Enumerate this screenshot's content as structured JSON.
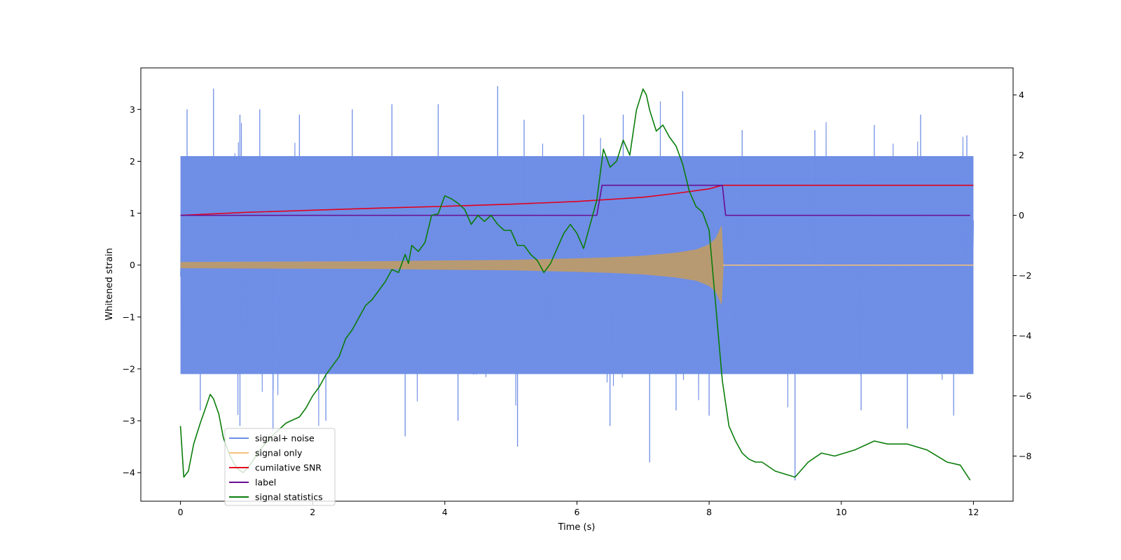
{
  "chart_data": {
    "type": "line",
    "title": "",
    "xlabel": "Time (s)",
    "ylabel": "Whitened strain",
    "xlim": [
      -0.6,
      12.6
    ],
    "ylim": [
      -4.55,
      3.8
    ],
    "y2lim": [
      -9.5,
      4.9
    ],
    "xticks": [
      0,
      2,
      4,
      6,
      8,
      10,
      12
    ],
    "yticks": [
      3,
      2,
      1,
      0,
      -1,
      -2,
      -3,
      -4
    ],
    "y2ticks": [
      4,
      2,
      0,
      -2,
      -4,
      -6,
      -8
    ],
    "legend_position": "lower-left",
    "colors": {
      "signal_noise": "#6f8ee6",
      "signal_only": "#f7c07a",
      "signal_only_fill": "#b89a72",
      "cumulative_snr": "#e3001b",
      "label": "#6a0d91",
      "signal_statistics": "#0a7d0a"
    },
    "series": [
      {
        "name": "signal+ noise",
        "axis": "left",
        "kind": "noise-band",
        "x_range": [
          0,
          12
        ],
        "envelope_low": -2.1,
        "envelope_high": 2.1,
        "sample_peaks": [
          [
            0.1,
            3.0
          ],
          [
            0.5,
            3.4
          ],
          [
            0.9,
            2.9
          ],
          [
            1.2,
            3.0
          ],
          [
            1.8,
            2.9
          ],
          [
            2.6,
            3.0
          ],
          [
            3.2,
            3.1
          ],
          [
            3.9,
            3.1
          ],
          [
            4.8,
            3.45
          ],
          [
            5.2,
            2.8
          ],
          [
            6.1,
            2.9
          ],
          [
            6.7,
            2.9
          ],
          [
            7.6,
            3.35
          ],
          [
            8.5,
            2.6
          ],
          [
            9.6,
            2.6
          ],
          [
            10.5,
            2.7
          ],
          [
            11.2,
            2.9
          ],
          [
            11.9,
            2.5
          ]
        ],
        "sample_troughs": [
          [
            0.05,
            -1.9
          ],
          [
            0.3,
            -2.8
          ],
          [
            0.9,
            -3.1
          ],
          [
            1.4,
            -3.2
          ],
          [
            2.2,
            -3.0
          ],
          [
            3.4,
            -3.3
          ],
          [
            4.2,
            -3.0
          ],
          [
            5.1,
            -3.5
          ],
          [
            6.5,
            -3.1
          ],
          [
            7.1,
            -3.8
          ],
          [
            7.5,
            -2.8
          ],
          [
            8.0,
            -2.9
          ],
          [
            9.3,
            -4.15
          ],
          [
            10.3,
            -2.8
          ],
          [
            11.0,
            -3.15
          ],
          [
            11.7,
            -2.9
          ]
        ]
      },
      {
        "name": "signal only",
        "axis": "left",
        "kind": "chirp-envelope",
        "x": [
          0,
          1,
          2,
          3,
          4,
          5,
          6,
          6.5,
          7,
          7.5,
          7.8,
          8.0,
          8.1,
          8.2,
          8.21,
          12
        ],
        "amplitude": [
          0.06,
          0.065,
          0.07,
          0.075,
          0.09,
          0.1,
          0.13,
          0.15,
          0.18,
          0.24,
          0.3,
          0.4,
          0.52,
          0.8,
          0.0,
          0.0
        ]
      },
      {
        "name": "cumilative SNR",
        "axis": "right",
        "x": [
          0,
          1,
          2,
          3,
          4,
          5,
          6,
          7,
          7.5,
          8.0,
          8.2,
          12
        ],
        "y": [
          0.0,
          0.1,
          0.17,
          0.24,
          0.3,
          0.37,
          0.46,
          0.6,
          0.73,
          0.88,
          1.0,
          1.0
        ]
      },
      {
        "name": "label",
        "axis": "right",
        "x": [
          0,
          6.3,
          6.38,
          8.2,
          8.25,
          11.95
        ],
        "y": [
          0,
          0,
          1,
          1,
          0,
          0
        ]
      },
      {
        "name": "signal statistics",
        "axis": "right",
        "x": [
          0,
          0.05,
          0.12,
          0.2,
          0.3,
          0.38,
          0.45,
          0.5,
          0.58,
          0.65,
          0.75,
          0.85,
          0.95,
          1.05,
          1.2,
          1.4,
          1.6,
          1.8,
          1.9,
          2.0,
          2.1,
          2.2,
          2.3,
          2.4,
          2.5,
          2.6,
          2.7,
          2.8,
          2.9,
          3.0,
          3.1,
          3.2,
          3.3,
          3.4,
          3.45,
          3.5,
          3.6,
          3.7,
          3.8,
          3.9,
          4.0,
          4.1,
          4.2,
          4.3,
          4.4,
          4.5,
          4.6,
          4.7,
          4.8,
          4.9,
          5.0,
          5.1,
          5.2,
          5.3,
          5.4,
          5.5,
          5.6,
          5.7,
          5.8,
          5.9,
          6.0,
          6.1,
          6.2,
          6.3,
          6.4,
          6.5,
          6.6,
          6.7,
          6.8,
          6.9,
          7.0,
          7.05,
          7.1,
          7.2,
          7.3,
          7.4,
          7.5,
          7.6,
          7.7,
          7.8,
          7.9,
          8.0,
          8.1,
          8.2,
          8.3,
          8.4,
          8.5,
          8.6,
          8.7,
          8.8,
          9.0,
          9.3,
          9.5,
          9.7,
          9.9,
          10.2,
          10.5,
          10.7,
          11.0,
          11.3,
          11.6,
          11.8,
          11.95
        ],
        "y": [
          -7.0,
          -8.7,
          -8.5,
          -7.6,
          -6.9,
          -6.4,
          -5.95,
          -6.1,
          -6.6,
          -7.4,
          -8.0,
          -8.4,
          -8.55,
          -8.3,
          -7.8,
          -7.3,
          -6.9,
          -6.7,
          -6.4,
          -6.0,
          -5.7,
          -5.3,
          -5.0,
          -4.7,
          -4.1,
          -3.8,
          -3.4,
          -3.0,
          -2.8,
          -2.5,
          -2.2,
          -1.8,
          -1.9,
          -1.3,
          -1.6,
          -1.0,
          -1.2,
          -0.9,
          0.0,
          0.05,
          0.65,
          0.55,
          0.4,
          0.2,
          -0.3,
          0.0,
          -0.2,
          0.0,
          -0.3,
          -0.5,
          -0.5,
          -1.0,
          -1.0,
          -1.3,
          -1.5,
          -1.9,
          -1.6,
          -1.1,
          -0.6,
          -0.3,
          -0.6,
          -1.1,
          -0.3,
          0.5,
          2.2,
          1.6,
          1.8,
          2.5,
          2.0,
          3.5,
          4.2,
          4.0,
          3.5,
          2.8,
          3.0,
          2.6,
          2.3,
          1.7,
          0.8,
          0.3,
          0.1,
          -0.5,
          -3.0,
          -5.5,
          -7.0,
          -7.5,
          -7.9,
          -8.1,
          -8.2,
          -8.2,
          -8.5,
          -8.7,
          -8.2,
          -7.9,
          -8.0,
          -7.8,
          -7.5,
          -7.6,
          -7.6,
          -7.8,
          -8.2,
          -8.3,
          -8.8
        ]
      }
    ]
  }
}
